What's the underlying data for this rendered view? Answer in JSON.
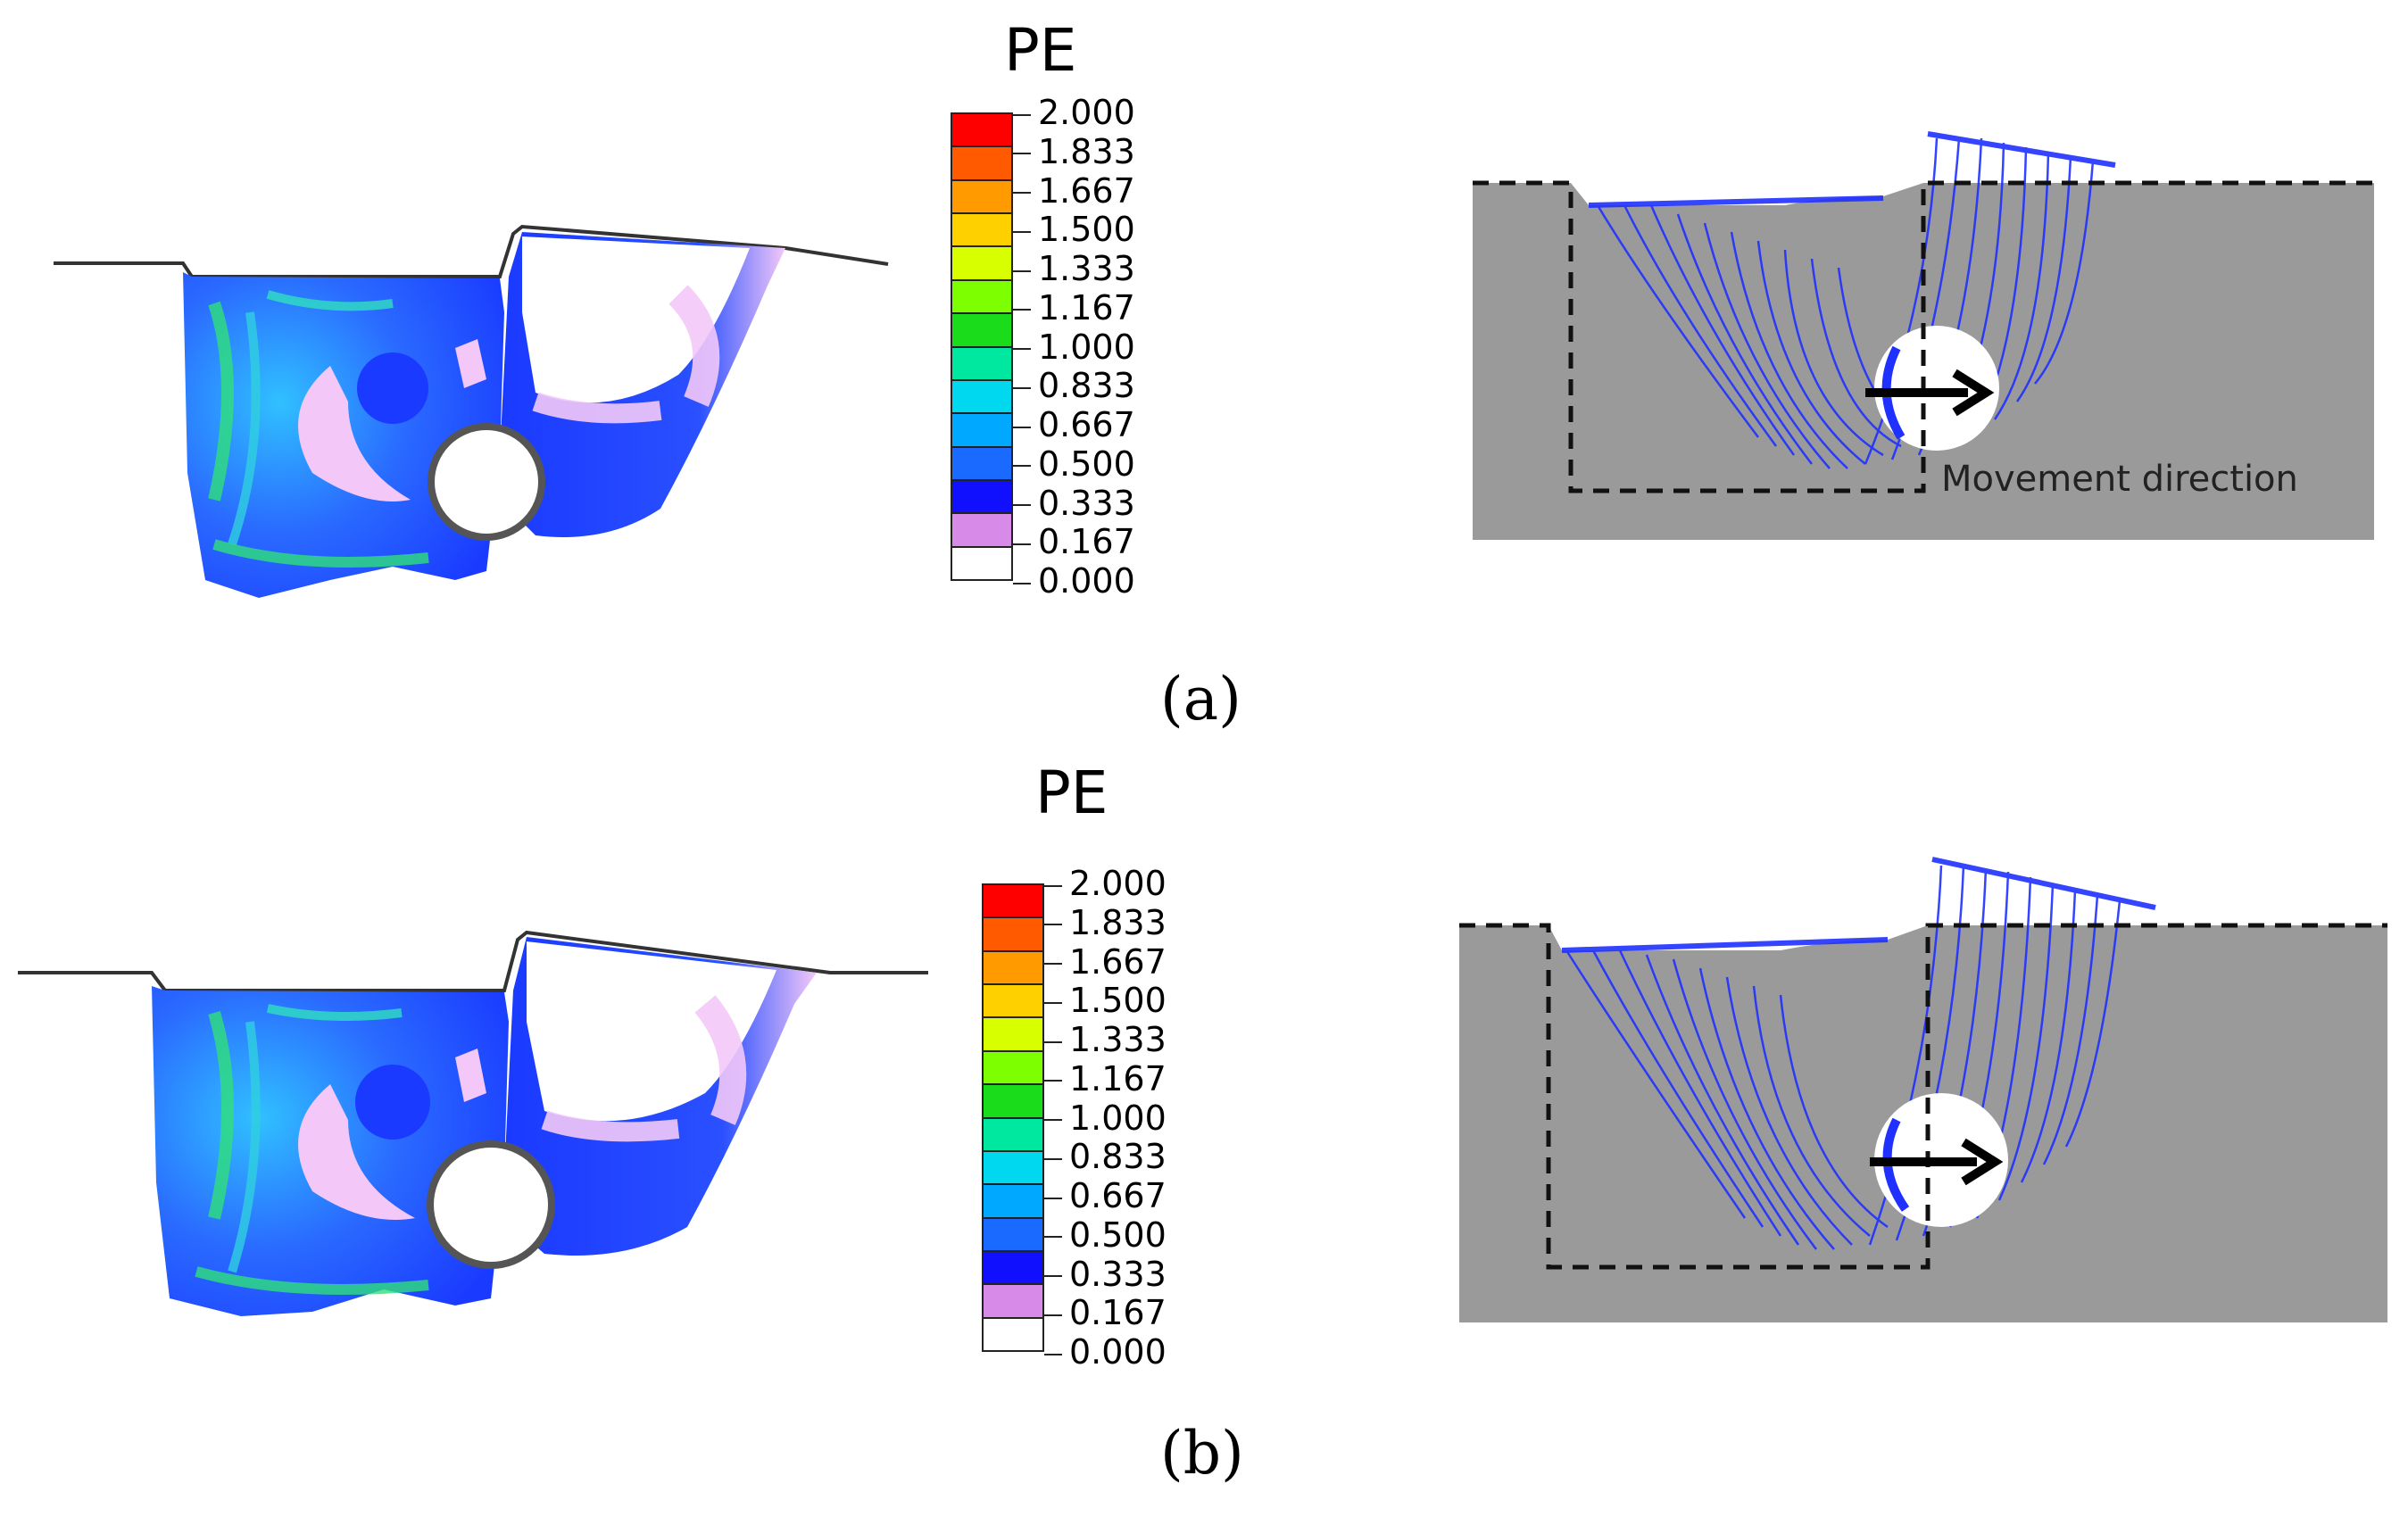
{
  "legend": {
    "title": "PE",
    "ticks": [
      "2.000",
      "1.833",
      "1.667",
      "1.500",
      "1.333",
      "1.167",
      "1.000",
      "0.833",
      "0.667",
      "0.500",
      "0.333",
      "0.167",
      "0.000"
    ],
    "colors": [
      "#ff0000",
      "#ff5a00",
      "#ff9a00",
      "#ffd000",
      "#d8ff00",
      "#7dff00",
      "#1adc1a",
      "#00e8a0",
      "#00d8f0",
      "#00a8ff",
      "#1a6aff",
      "#1010ff",
      "#d88ae8",
      "#ffffff"
    ]
  },
  "panels": [
    {
      "label": "(a)",
      "annotation": "Movement direction"
    },
    {
      "label": "(b)"
    }
  ]
}
